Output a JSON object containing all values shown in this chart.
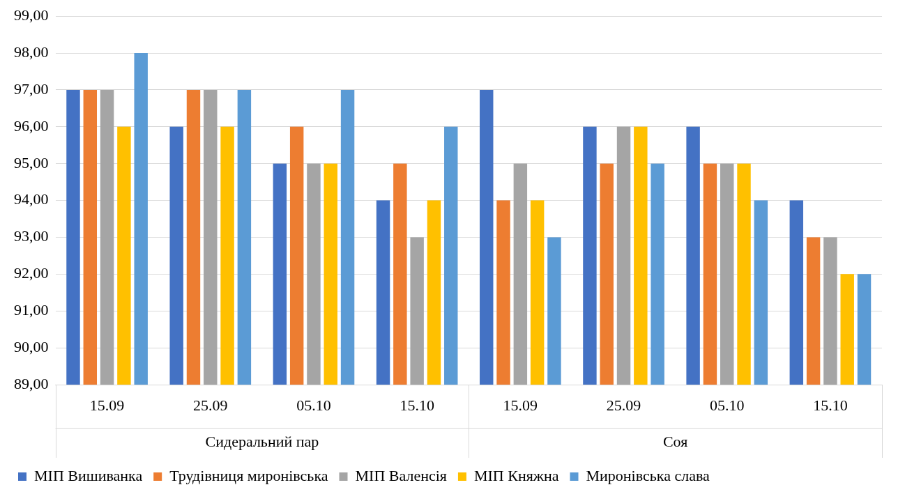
{
  "chart_data": {
    "type": "bar",
    "categories": [
      "15.09",
      "25.09",
      "05.10",
      "15.10",
      "15.09",
      "25.09",
      "05.10",
      "15.10"
    ],
    "series": [
      {
        "name": "МІП Вишиванка",
        "color": "#4472c4",
        "values": [
          97,
          96,
          95,
          94,
          97,
          96,
          96,
          94
        ]
      },
      {
        "name": "Трудівниця миронівська",
        "color": "#ed7d31",
        "values": [
          97,
          97,
          96,
          95,
          94,
          95,
          95,
          93
        ]
      },
      {
        "name": "МІП Валенсія",
        "color": "#a5a5a5",
        "values": [
          97,
          97,
          95,
          93,
          95,
          96,
          95,
          93
        ]
      },
      {
        "name": "МІП Княжна",
        "color": "#ffc000",
        "values": [
          96,
          96,
          95,
          94,
          94,
          96,
          95,
          92
        ]
      },
      {
        "name": "Миронівська слава",
        "color": "#5b9bd5",
        "values": [
          98,
          97,
          97,
          96,
          93,
          95,
          94,
          92
        ]
      }
    ],
    "ylim": [
      89,
      99
    ],
    "yticks": [
      {
        "value": 89,
        "label": "89,00"
      },
      {
        "value": 90,
        "label": "90,00"
      },
      {
        "value": 91,
        "label": "91,00"
      },
      {
        "value": 92,
        "label": "92,00"
      },
      {
        "value": 93,
        "label": "93,00"
      },
      {
        "value": 94,
        "label": "94,00"
      },
      {
        "value": 95,
        "label": "95,00"
      },
      {
        "value": 96,
        "label": "96,00"
      },
      {
        "value": 97,
        "label": "97,00"
      },
      {
        "value": 98,
        "label": "98,00"
      },
      {
        "value": 99,
        "label": "99,00"
      }
    ],
    "annotations": [
      "Сидеральний пар",
      "Соя"
    ],
    "grid": "y",
    "legend": "bottom"
  }
}
